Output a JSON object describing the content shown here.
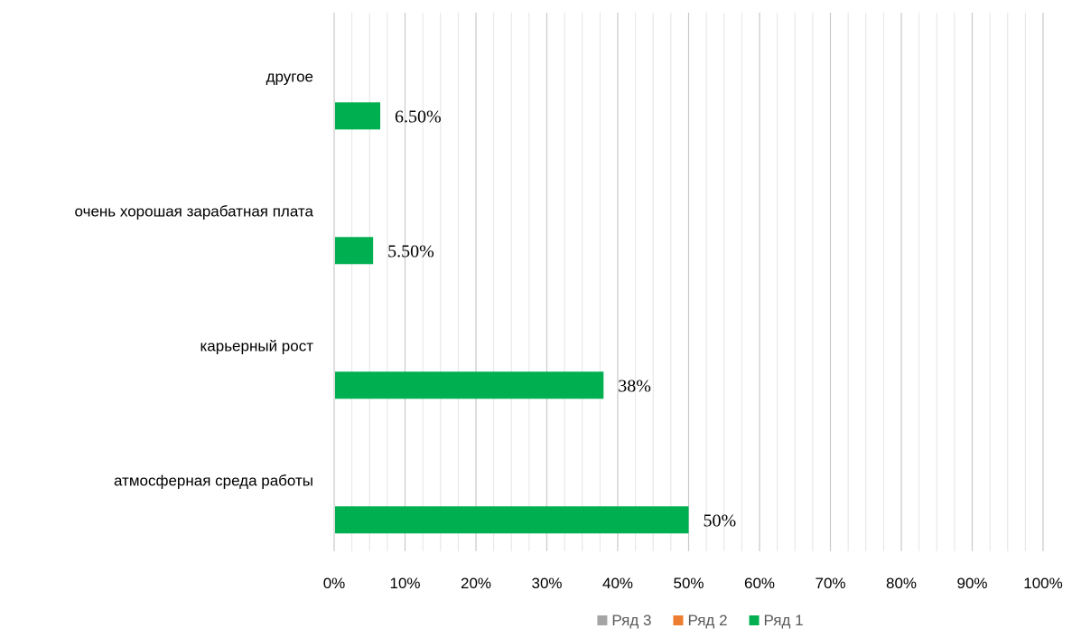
{
  "chart_data": {
    "type": "bar",
    "orientation": "horizontal",
    "categories": [
      "атмосферная среда работы",
      "карьерный рост",
      "очень хорошая зарабатная плата",
      "другое"
    ],
    "series": [
      {
        "name": "Ряд 1",
        "color": "#00B050",
        "values": [
          50,
          38,
          5.5,
          6.5
        ],
        "labels": [
          "50%",
          "38%",
          "5.50%",
          "6.50%"
        ]
      },
      {
        "name": "Ряд 2",
        "color": "#ED7D31",
        "values": [
          null,
          null,
          null,
          null
        ]
      },
      {
        "name": "Ряд 3",
        "color": "#A5A5A5",
        "values": [
          null,
          null,
          null,
          null
        ]
      }
    ],
    "x_ticks": [
      "0%",
      "10%",
      "20%",
      "30%",
      "40%",
      "50%",
      "60%",
      "70%",
      "80%",
      "90%",
      "100%"
    ],
    "xlim": [
      0,
      100
    ],
    "grid": true,
    "minor_grid": true,
    "legend": {
      "placement": "bottom",
      "order": [
        "Ряд 3",
        "Ряд 2",
        "Ряд 1"
      ]
    }
  }
}
